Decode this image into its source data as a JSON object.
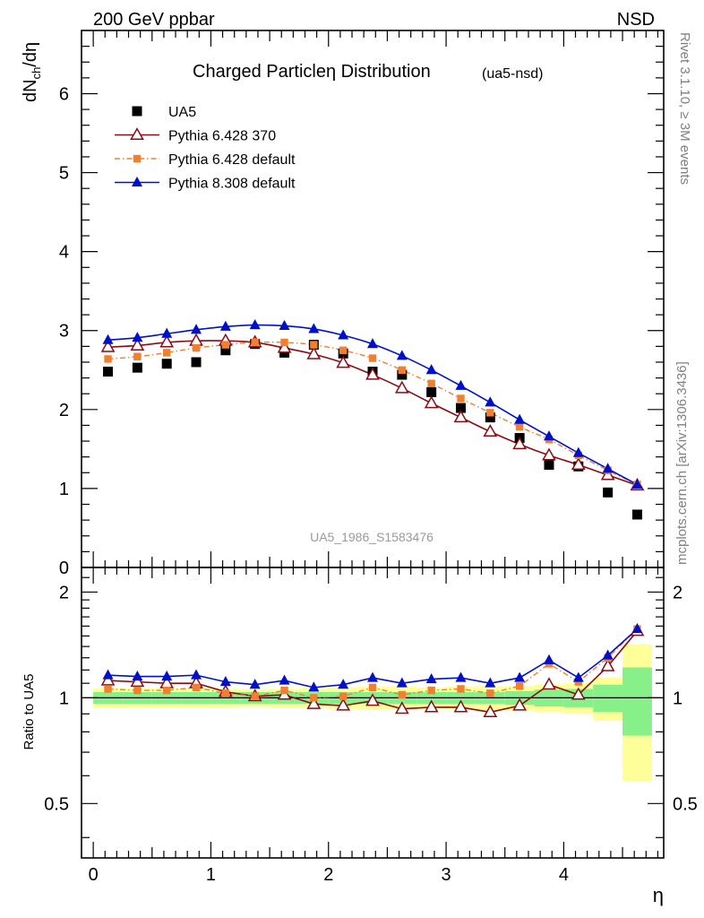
{
  "header": {
    "left": "200 GeV ppbar",
    "right": "NSD"
  },
  "side_labels": {
    "rivet": "Rivet 3.1.10, ≥ 3M events",
    "mcplots": "mcplots.cern.ch [arXiv:1306.3436]"
  },
  "main_plot": {
    "title": "Charged Particle",
    "title_symbol": "η",
    "title_rest": " Distribution",
    "subtitle": "(ua5-nsd)",
    "ylabel_main": "dN",
    "ylabel_sub": "ch",
    "ylabel_tail": "/dη",
    "analysis_id": "UA5_1986_S1583476"
  },
  "ratio_plot": {
    "ylabel": "Ratio to UA5"
  },
  "xlabel": "η",
  "legend": [
    {
      "label": "UA5",
      "color": "#000000",
      "marker": "filled-square",
      "line": "none"
    },
    {
      "label": "Pythia 6.428 370",
      "color": "#8b0a14",
      "marker": "open-triangle",
      "line": "solid"
    },
    {
      "label": "Pythia 6.428 default",
      "color": "#f08030",
      "marker": "filled-square-small",
      "line": "dashdot"
    },
    {
      "label": "Pythia 8.308 default",
      "color": "#0010c8",
      "marker": "filled-triangle",
      "line": "solid"
    }
  ],
  "chart_data": [
    {
      "type": "scatter",
      "panel": "main",
      "xlim": [
        -0.1,
        4.85
      ],
      "ylim": [
        0,
        6.8
      ],
      "x_ticks": [
        0,
        1,
        2,
        3,
        4
      ],
      "y_ticks": [
        0,
        1,
        2,
        3,
        4,
        5,
        6
      ],
      "x": [
        0.125,
        0.375,
        0.625,
        0.875,
        1.125,
        1.375,
        1.625,
        1.875,
        2.125,
        2.375,
        2.625,
        2.875,
        3.125,
        3.375,
        3.625,
        3.875,
        4.125,
        4.375,
        4.625
      ],
      "series": [
        {
          "name": "UA5",
          "values": [
            2.48,
            2.53,
            2.58,
            2.6,
            2.75,
            2.83,
            2.72,
            2.82,
            2.71,
            2.48,
            2.44,
            2.22,
            2.02,
            1.9,
            1.64,
            1.3,
            1.28,
            0.95,
            0.67
          ]
        },
        {
          "name": "Pythia 6.428 370",
          "values": [
            2.79,
            2.81,
            2.85,
            2.87,
            2.87,
            2.85,
            2.78,
            2.7,
            2.59,
            2.44,
            2.27,
            2.08,
            1.9,
            1.72,
            1.56,
            1.42,
            1.3,
            1.17,
            1.04
          ]
        },
        {
          "name": "Pythia 6.428 default",
          "values": [
            2.64,
            2.67,
            2.72,
            2.78,
            2.82,
            2.85,
            2.85,
            2.82,
            2.75,
            2.65,
            2.5,
            2.33,
            2.14,
            1.96,
            1.78,
            1.62,
            1.42,
            1.23,
            1.05
          ]
        },
        {
          "name": "Pythia 8.308 default",
          "values": [
            2.88,
            2.91,
            2.96,
            3.01,
            3.05,
            3.07,
            3.06,
            3.02,
            2.94,
            2.83,
            2.68,
            2.5,
            2.3,
            2.09,
            1.87,
            1.66,
            1.45,
            1.25,
            1.05
          ]
        }
      ]
    },
    {
      "type": "scatter",
      "panel": "ratio",
      "xlim": [
        -0.1,
        4.85
      ],
      "ylim": [
        0.35,
        2.35
      ],
      "y_ticks": [
        0.5,
        1,
        2
      ],
      "x": [
        0.125,
        0.375,
        0.625,
        0.875,
        1.125,
        1.375,
        1.625,
        1.875,
        2.125,
        2.375,
        2.625,
        2.875,
        3.125,
        3.375,
        3.625,
        3.875,
        4.125,
        4.375,
        4.625
      ],
      "series": [
        {
          "name": "Pythia 6.428 370",
          "values": [
            1.12,
            1.11,
            1.1,
            1.1,
            1.04,
            1.01,
            1.02,
            0.96,
            0.95,
            0.98,
            0.93,
            0.94,
            0.94,
            0.91,
            0.95,
            1.09,
            1.02,
            1.23,
            1.55
          ]
        },
        {
          "name": "Pythia 6.428 default",
          "values": [
            1.06,
            1.05,
            1.05,
            1.07,
            1.03,
            1.01,
            1.05,
            1.0,
            1.01,
            1.07,
            1.02,
            1.05,
            1.06,
            1.03,
            1.08,
            1.25,
            1.11,
            1.3,
            1.57
          ]
        },
        {
          "name": "Pythia 8.308 default",
          "values": [
            1.16,
            1.15,
            1.15,
            1.16,
            1.11,
            1.09,
            1.12,
            1.07,
            1.09,
            1.14,
            1.1,
            1.13,
            1.14,
            1.1,
            1.14,
            1.28,
            1.14,
            1.32,
            1.57
          ]
        }
      ],
      "uncertainty_bands": {
        "inner": [
          0.038,
          0.038,
          0.038,
          0.038,
          0.038,
          0.038,
          0.038,
          0.038,
          0.038,
          0.038,
          0.038,
          0.038,
          0.038,
          0.038,
          0.045,
          0.055,
          0.06,
          0.09,
          0.22
        ],
        "outer": [
          0.065,
          0.065,
          0.063,
          0.062,
          0.06,
          0.058,
          0.06,
          0.065,
          0.07,
          0.075,
          0.075,
          0.07,
          0.075,
          0.08,
          0.08,
          0.09,
          0.1,
          0.14,
          0.42
        ],
        "colors": {
          "inner": "#88f088",
          "outer": "#ffff99"
        }
      }
    }
  ]
}
